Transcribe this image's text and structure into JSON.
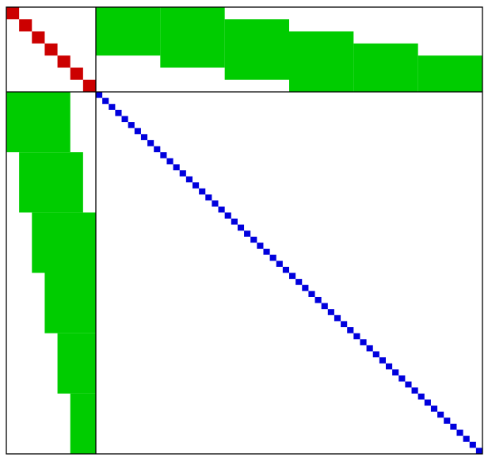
{
  "matrix": {
    "description_free": true,
    "blocks": {
      "small_block_size": 7,
      "large_block_size": 60,
      "small_diagonal_color": "#cc0000",
      "large_diagonal_color": "#0000dd",
      "coupling_color": "#00cc00",
      "border_color": "#000000",
      "background_color": "#ffffff"
    },
    "top_right_coupling": {
      "comment_free": true,
      "column_groups": [
        {
          "columns": [
            0,
            10
          ],
          "rows_filled": [
            0,
            4
          ]
        },
        {
          "columns": [
            10,
            20
          ],
          "rows_filled": [
            0,
            5
          ]
        },
        {
          "columns": [
            20,
            30
          ],
          "rows_filled": [
            1,
            6
          ]
        },
        {
          "columns": [
            30,
            40
          ],
          "rows_filled": [
            2,
            7
          ]
        },
        {
          "columns": [
            40,
            50
          ],
          "rows_filled": [
            3,
            7
          ]
        },
        {
          "columns": [
            50,
            60
          ],
          "rows_filled": [
            4,
            7
          ]
        }
      ]
    },
    "bottom_left_coupling": {
      "row_groups": [
        {
          "rows": [
            0,
            10
          ],
          "cols_filled": [
            0,
            5
          ]
        },
        {
          "rows": [
            10,
            20
          ],
          "cols_filled": [
            1,
            6
          ]
        },
        {
          "rows": [
            20,
            30
          ],
          "cols_filled": [
            2,
            7
          ]
        },
        {
          "rows": [
            30,
            40
          ],
          "cols_filled": [
            3,
            7
          ]
        },
        {
          "rows": [
            40,
            50
          ],
          "cols_filled": [
            4,
            7
          ]
        },
        {
          "rows": [
            50,
            60
          ],
          "cols_filled": [
            5,
            7
          ]
        }
      ]
    }
  }
}
